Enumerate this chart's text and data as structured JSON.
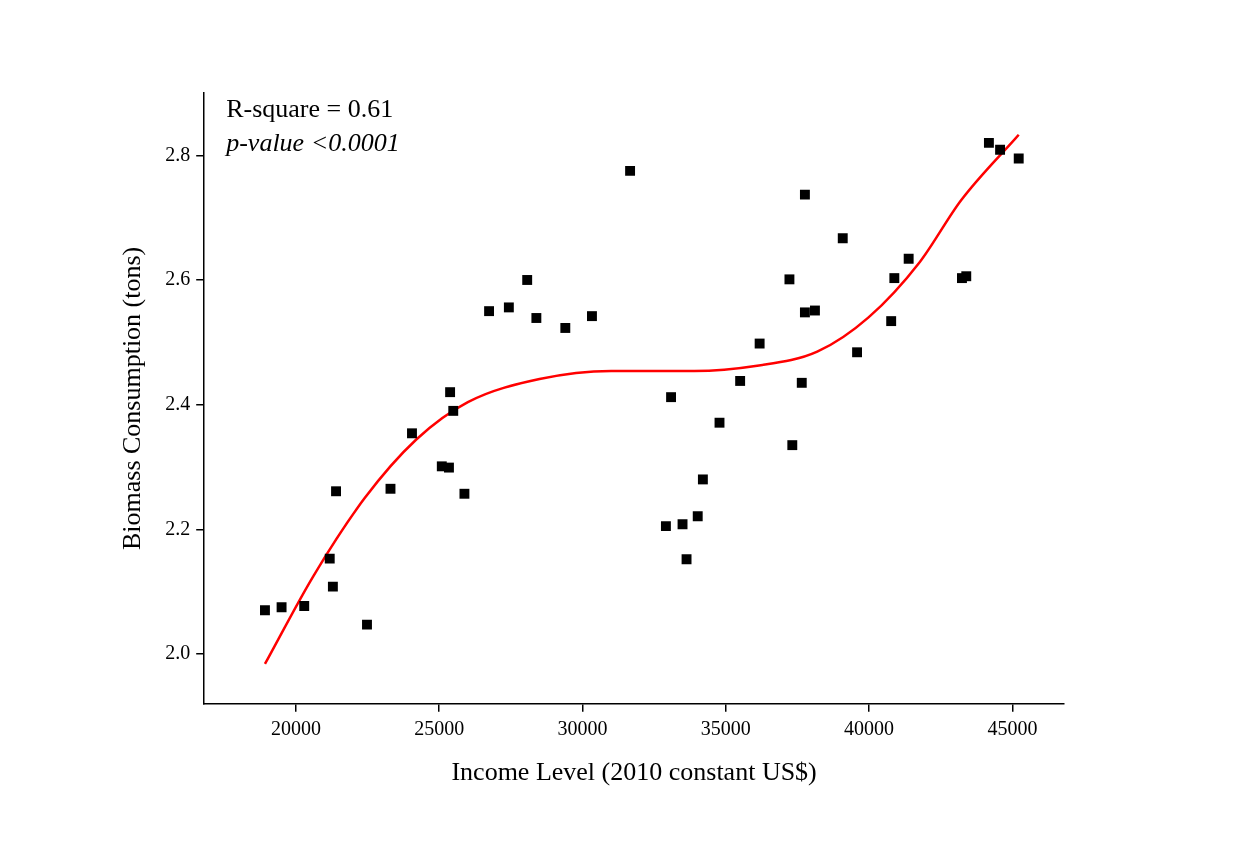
{
  "chart_data": {
    "type": "scatter",
    "xlabel": "Income Level (2010 constant US$)",
    "ylabel": "Biomass Consumption (tons)",
    "annotations": [
      "R-square = 0.61",
      "p-value <0.0001"
    ],
    "xlim": [
      16800,
      46800
    ],
    "ylim": [
      1.92,
      2.9
    ],
    "xticks": [
      20000,
      25000,
      30000,
      35000,
      40000,
      45000
    ],
    "yticks": [
      {
        "value": 2,
        "label": "2.0"
      },
      {
        "value": 2.2,
        "label": "2.2"
      },
      {
        "value": 2.4,
        "label": "2.4"
      },
      {
        "value": 2.6,
        "label": "2.6"
      },
      {
        "value": 2.8,
        "label": "2.8"
      }
    ],
    "grid": false,
    "series": [
      {
        "type": "scatter",
        "color": "#000000",
        "marker": "square",
        "x": [
          18920,
          19500,
          20290,
          21180,
          21290,
          21400,
          22480,
          23300,
          24050,
          25090,
          25380,
          25340,
          25490,
          25880,
          26740,
          27430,
          28070,
          28390,
          29400,
          30330,
          31660,
          32910,
          33090,
          33490,
          33630,
          34020,
          34200,
          34780,
          35500,
          36180,
          37220,
          37320,
          37650,
          37760,
          37760,
          38110,
          39080,
          39580,
          41380,
          40770,
          40880,
          43240,
          43390,
          44180,
          44570,
          45220
        ],
        "values": [
          2.07,
          2.075,
          2.077,
          2.153,
          2.108,
          2.261,
          2.047,
          2.265,
          2.354,
          2.301,
          2.42,
          2.299,
          2.39,
          2.257,
          2.55,
          2.556,
          2.6,
          2.539,
          2.523,
          2.542,
          2.775,
          2.205,
          2.412,
          2.208,
          2.152,
          2.221,
          2.28,
          2.371,
          2.438,
          2.498,
          2.601,
          2.335,
          2.435,
          2.737,
          2.548,
          2.551,
          2.667,
          2.484,
          2.634,
          2.534,
          2.603,
          2.603,
          2.606,
          2.82,
          2.809,
          2.795
        ]
      },
      {
        "type": "line",
        "color": "#ff0000",
        "marker": "none",
        "x": [
          18920,
          20610,
          22400,
          24200,
          26000,
          28500,
          31000,
          33900,
          36030,
          38190,
          39980,
          41770,
          43210,
          45220
        ],
        "values": [
          1.984,
          2.125,
          2.25,
          2.344,
          2.404,
          2.441,
          2.454,
          2.454,
          2.462,
          2.485,
          2.54,
          2.629,
          2.728,
          2.833
        ]
      }
    ]
  }
}
